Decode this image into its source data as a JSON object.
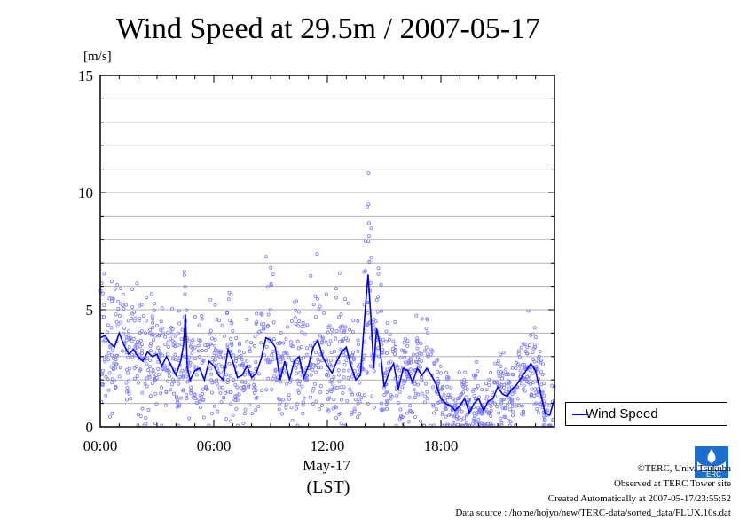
{
  "chart_data": {
    "type": "scatter",
    "title": "Wind Speed at 29.5m / 2007-05-17",
    "ylabel": "[m/s]",
    "xlabel": "May-17",
    "xlabel2": "(LST)",
    "ylim": [
      0,
      15
    ],
    "xlim": [
      0,
      24
    ],
    "yticks": [
      0,
      5,
      10,
      15
    ],
    "xticks": [
      {
        "value": 0,
        "label": "00:00"
      },
      {
        "value": 6,
        "label": "06:00"
      },
      {
        "value": 12,
        "label": "12:00"
      },
      {
        "value": 18,
        "label": "18:00"
      }
    ],
    "grid": true,
    "legend": {
      "position": "right",
      "entries": [
        "Wind Speed"
      ]
    },
    "series": [
      {
        "name": "Wind Speed",
        "color": "#0000ff",
        "markers": "#7b7bff",
        "x": [
          0.0,
          0.25,
          0.5,
          0.75,
          1.0,
          1.25,
          1.5,
          1.75,
          2.0,
          2.25,
          2.5,
          2.75,
          3.0,
          3.25,
          3.5,
          3.75,
          4.0,
          4.25,
          4.4,
          4.5,
          4.6,
          4.75,
          5.0,
          5.25,
          5.5,
          5.75,
          6.0,
          6.25,
          6.5,
          6.75,
          7.0,
          7.25,
          7.5,
          7.75,
          8.0,
          8.25,
          8.5,
          8.75,
          9.0,
          9.25,
          9.5,
          9.75,
          10.0,
          10.25,
          10.5,
          10.75,
          11.0,
          11.25,
          11.5,
          11.75,
          12.0,
          12.25,
          12.5,
          12.75,
          13.0,
          13.25,
          13.5,
          13.75,
          14.0,
          14.15,
          14.3,
          14.45,
          14.6,
          14.75,
          15.0,
          15.25,
          15.5,
          15.75,
          16.0,
          16.25,
          16.5,
          16.75,
          17.0,
          17.25,
          17.5,
          17.75,
          18.0,
          18.25,
          18.5,
          18.75,
          19.0,
          19.25,
          19.5,
          19.75,
          20.0,
          20.25,
          20.5,
          20.75,
          21.0,
          21.25,
          21.5,
          21.75,
          22.0,
          22.25,
          22.5,
          22.75,
          23.0,
          23.25,
          23.5,
          23.75,
          24.0
        ],
        "values": [
          3.8,
          3.9,
          3.6,
          3.4,
          4.0,
          3.5,
          3.1,
          3.3,
          3.0,
          2.8,
          3.2,
          3.0,
          3.1,
          2.6,
          3.0,
          2.6,
          2.2,
          2.8,
          3.5,
          4.8,
          2.5,
          2.0,
          2.4,
          2.5,
          2.0,
          2.8,
          2.6,
          2.2,
          2.0,
          3.3,
          2.8,
          2.1,
          2.2,
          2.6,
          2.1,
          2.3,
          2.9,
          3.8,
          3.7,
          3.4,
          2.0,
          2.8,
          2.0,
          2.8,
          3.0,
          2.1,
          2.6,
          3.4,
          3.7,
          3.0,
          2.6,
          2.3,
          2.8,
          3.2,
          3.4,
          2.6,
          2.0,
          2.2,
          5.0,
          6.5,
          4.7,
          2.5,
          4.2,
          3.6,
          1.7,
          2.3,
          2.7,
          1.6,
          2.5,
          2.4,
          1.9,
          2.5,
          2.2,
          2.5,
          2.2,
          1.8,
          1.2,
          1.0,
          0.9,
          0.7,
          0.9,
          1.2,
          0.6,
          1.0,
          1.2,
          0.7,
          1.1,
          1.2,
          1.7,
          1.4,
          1.3,
          1.6,
          1.8,
          2.1,
          2.4,
          2.7,
          2.4,
          1.5,
          0.6,
          0.5,
          1.2
        ]
      }
    ]
  },
  "footer": {
    "copyright": "©TERC, Univ. Tsukuba",
    "observed": "Observed at TERC Tower site",
    "created": "Created Automatically at 2007-05-17/23:55:52",
    "source": "Data source : /home/hojyo/new/TERC-data/sorted_data/FLUX.10s.dat",
    "logo_text": "TERC"
  }
}
